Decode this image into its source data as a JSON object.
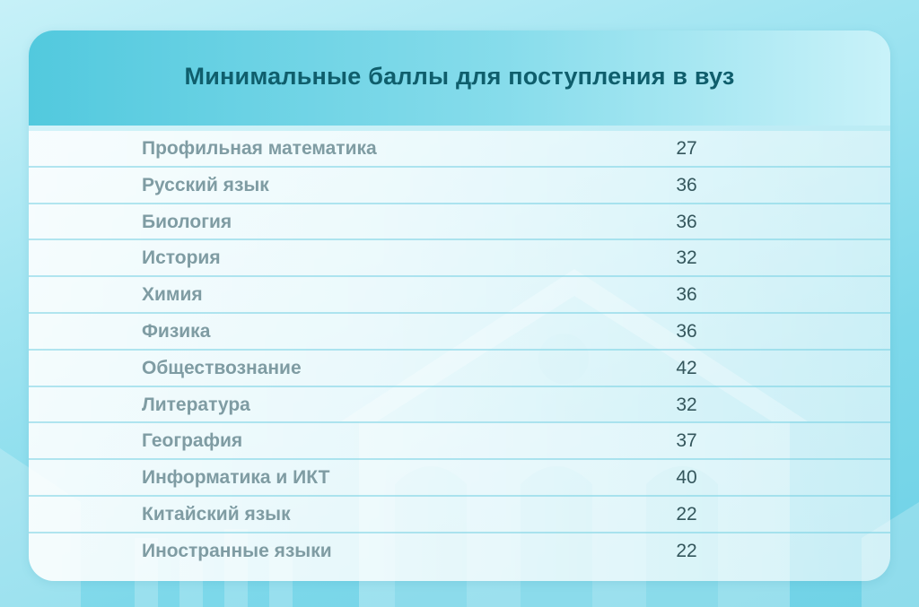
{
  "title": "Минимальные баллы для поступления в вуз",
  "rows": [
    {
      "subject": "Профильная математика",
      "score": "27"
    },
    {
      "subject": "Русский язык",
      "score": "36"
    },
    {
      "subject": "Биология",
      "score": "36"
    },
    {
      "subject": "История",
      "score": "32"
    },
    {
      "subject": "Химия",
      "score": "36"
    },
    {
      "subject": "Физика",
      "score": "36"
    },
    {
      "subject": "Обществознание",
      "score": "42"
    },
    {
      "subject": "Литература",
      "score": "32"
    },
    {
      "subject": "География",
      "score": "37"
    },
    {
      "subject": "Информатика и ИКТ",
      "score": "40"
    },
    {
      "subject": "Китайский язык",
      "score": "22"
    },
    {
      "subject": "Иностранные языки",
      "score": "22"
    }
  ],
  "colors": {
    "title": "#0f5e6c",
    "subject_text": "#7f9ca3",
    "score_text": "#34565c",
    "header_accent": "#52c9de"
  },
  "background_icon": "university-building-icon"
}
